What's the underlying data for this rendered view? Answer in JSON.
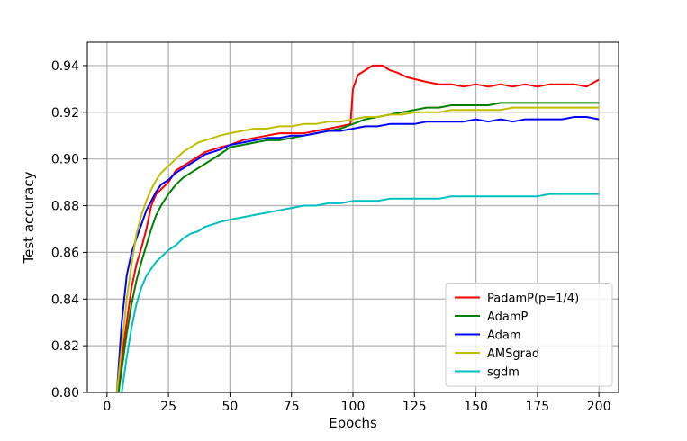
{
  "chart_data": {
    "type": "line",
    "xlabel": "Epochs",
    "ylabel": "Test accuracy",
    "xlim": [
      -8,
      208
    ],
    "ylim": [
      0.8,
      0.95
    ],
    "xticks": [
      0,
      25,
      50,
      75,
      100,
      125,
      150,
      175,
      200
    ],
    "xtick_labels": [
      "0",
      "25",
      "50",
      "75",
      "100",
      "125",
      "150",
      "175",
      "200"
    ],
    "yticks": [
      0.8,
      0.82,
      0.84,
      0.86,
      0.88,
      0.9,
      0.92,
      0.94
    ],
    "ytick_labels": [
      "0.80",
      "0.82",
      "0.84",
      "0.86",
      "0.88",
      "0.90",
      "0.92",
      "0.94"
    ],
    "grid": true,
    "legend_position": "lower-right",
    "series": [
      {
        "name": "PadamP(p=1/4)",
        "color": "#ff0000",
        "points": [
          [
            4,
            0.795
          ],
          [
            6,
            0.815
          ],
          [
            8,
            0.83
          ],
          [
            10,
            0.845
          ],
          [
            12,
            0.855
          ],
          [
            14,
            0.862
          ],
          [
            16,
            0.87
          ],
          [
            18,
            0.88
          ],
          [
            20,
            0.885
          ],
          [
            22,
            0.887
          ],
          [
            25,
            0.89
          ],
          [
            28,
            0.895
          ],
          [
            31,
            0.897
          ],
          [
            34,
            0.899
          ],
          [
            37,
            0.901
          ],
          [
            40,
            0.903
          ],
          [
            43,
            0.904
          ],
          [
            46,
            0.905
          ],
          [
            50,
            0.906
          ],
          [
            55,
            0.908
          ],
          [
            60,
            0.909
          ],
          [
            65,
            0.91
          ],
          [
            70,
            0.911
          ],
          [
            75,
            0.911
          ],
          [
            80,
            0.911
          ],
          [
            85,
            0.912
          ],
          [
            90,
            0.913
          ],
          [
            95,
            0.914
          ],
          [
            99,
            0.915
          ],
          [
            100,
            0.93
          ],
          [
            102,
            0.936
          ],
          [
            105,
            0.938
          ],
          [
            108,
            0.94
          ],
          [
            112,
            0.94
          ],
          [
            115,
            0.938
          ],
          [
            118,
            0.937
          ],
          [
            122,
            0.935
          ],
          [
            126,
            0.934
          ],
          [
            130,
            0.933
          ],
          [
            135,
            0.932
          ],
          [
            140,
            0.932
          ],
          [
            145,
            0.931
          ],
          [
            150,
            0.932
          ],
          [
            155,
            0.931
          ],
          [
            160,
            0.932
          ],
          [
            165,
            0.931
          ],
          [
            170,
            0.932
          ],
          [
            175,
            0.931
          ],
          [
            180,
            0.932
          ],
          [
            185,
            0.932
          ],
          [
            190,
            0.932
          ],
          [
            195,
            0.931
          ],
          [
            200,
            0.934
          ]
        ]
      },
      {
        "name": "AdamP",
        "color": "#008000",
        "points": [
          [
            4,
            0.795
          ],
          [
            6,
            0.81
          ],
          [
            8,
            0.825
          ],
          [
            10,
            0.838
          ],
          [
            12,
            0.848
          ],
          [
            14,
            0.856
          ],
          [
            16,
            0.863
          ],
          [
            18,
            0.87
          ],
          [
            20,
            0.876
          ],
          [
            22,
            0.88
          ],
          [
            25,
            0.885
          ],
          [
            28,
            0.889
          ],
          [
            31,
            0.892
          ],
          [
            34,
            0.894
          ],
          [
            37,
            0.896
          ],
          [
            40,
            0.898
          ],
          [
            43,
            0.9
          ],
          [
            46,
            0.902
          ],
          [
            50,
            0.905
          ],
          [
            55,
            0.906
          ],
          [
            60,
            0.907
          ],
          [
            65,
            0.908
          ],
          [
            70,
            0.908
          ],
          [
            75,
            0.909
          ],
          [
            80,
            0.91
          ],
          [
            85,
            0.911
          ],
          [
            90,
            0.912
          ],
          [
            95,
            0.913
          ],
          [
            100,
            0.915
          ],
          [
            105,
            0.917
          ],
          [
            110,
            0.918
          ],
          [
            115,
            0.919
          ],
          [
            120,
            0.92
          ],
          [
            125,
            0.921
          ],
          [
            130,
            0.922
          ],
          [
            135,
            0.922
          ],
          [
            140,
            0.923
          ],
          [
            145,
            0.923
          ],
          [
            150,
            0.923
          ],
          [
            155,
            0.923
          ],
          [
            160,
            0.924
          ],
          [
            165,
            0.924
          ],
          [
            170,
            0.924
          ],
          [
            175,
            0.924
          ],
          [
            180,
            0.924
          ],
          [
            185,
            0.924
          ],
          [
            190,
            0.924
          ],
          [
            195,
            0.924
          ],
          [
            200,
            0.924
          ]
        ]
      },
      {
        "name": "Adam",
        "color": "#0000ff",
        "points": [
          [
            4,
            0.8
          ],
          [
            6,
            0.83
          ],
          [
            8,
            0.85
          ],
          [
            10,
            0.86
          ],
          [
            12,
            0.866
          ],
          [
            14,
            0.872
          ],
          [
            16,
            0.878
          ],
          [
            18,
            0.882
          ],
          [
            20,
            0.886
          ],
          [
            22,
            0.889
          ],
          [
            25,
            0.891
          ],
          [
            28,
            0.894
          ],
          [
            31,
            0.896
          ],
          [
            34,
            0.898
          ],
          [
            37,
            0.9
          ],
          [
            40,
            0.902
          ],
          [
            43,
            0.903
          ],
          [
            46,
            0.904
          ],
          [
            50,
            0.906
          ],
          [
            55,
            0.907
          ],
          [
            60,
            0.908
          ],
          [
            65,
            0.909
          ],
          [
            70,
            0.909
          ],
          [
            75,
            0.91
          ],
          [
            80,
            0.91
          ],
          [
            85,
            0.911
          ],
          [
            90,
            0.912
          ],
          [
            95,
            0.912
          ],
          [
            100,
            0.913
          ],
          [
            105,
            0.914
          ],
          [
            110,
            0.914
          ],
          [
            115,
            0.915
          ],
          [
            120,
            0.915
          ],
          [
            125,
            0.915
          ],
          [
            130,
            0.916
          ],
          [
            135,
            0.916
          ],
          [
            140,
            0.916
          ],
          [
            145,
            0.916
          ],
          [
            150,
            0.917
          ],
          [
            155,
            0.916
          ],
          [
            160,
            0.917
          ],
          [
            165,
            0.916
          ],
          [
            170,
            0.917
          ],
          [
            175,
            0.917
          ],
          [
            180,
            0.917
          ],
          [
            185,
            0.917
          ],
          [
            190,
            0.918
          ],
          [
            195,
            0.918
          ],
          [
            200,
            0.917
          ]
        ]
      },
      {
        "name": "AMSgrad",
        "color": "#bfbf00",
        "points": [
          [
            4,
            0.8
          ],
          [
            6,
            0.82
          ],
          [
            8,
            0.84
          ],
          [
            10,
            0.855
          ],
          [
            12,
            0.868
          ],
          [
            14,
            0.876
          ],
          [
            16,
            0.882
          ],
          [
            18,
            0.887
          ],
          [
            20,
            0.891
          ],
          [
            22,
            0.894
          ],
          [
            25,
            0.897
          ],
          [
            28,
            0.9
          ],
          [
            31,
            0.903
          ],
          [
            34,
            0.905
          ],
          [
            37,
            0.907
          ],
          [
            40,
            0.908
          ],
          [
            43,
            0.909
          ],
          [
            46,
            0.91
          ],
          [
            50,
            0.911
          ],
          [
            55,
            0.912
          ],
          [
            60,
            0.913
          ],
          [
            65,
            0.913
          ],
          [
            70,
            0.914
          ],
          [
            75,
            0.914
          ],
          [
            80,
            0.915
          ],
          [
            85,
            0.915
          ],
          [
            90,
            0.916
          ],
          [
            95,
            0.916
          ],
          [
            100,
            0.917
          ],
          [
            105,
            0.918
          ],
          [
            110,
            0.918
          ],
          [
            115,
            0.919
          ],
          [
            120,
            0.919
          ],
          [
            125,
            0.92
          ],
          [
            130,
            0.92
          ],
          [
            135,
            0.92
          ],
          [
            140,
            0.921
          ],
          [
            145,
            0.921
          ],
          [
            150,
            0.921
          ],
          [
            155,
            0.921
          ],
          [
            160,
            0.921
          ],
          [
            165,
            0.922
          ],
          [
            170,
            0.922
          ],
          [
            175,
            0.922
          ],
          [
            180,
            0.922
          ],
          [
            185,
            0.922
          ],
          [
            190,
            0.922
          ],
          [
            195,
            0.922
          ],
          [
            200,
            0.922
          ]
        ]
      },
      {
        "name": "sgdm",
        "color": "#00bfbf",
        "points": [
          [
            6,
            0.8
          ],
          [
            8,
            0.815
          ],
          [
            10,
            0.828
          ],
          [
            12,
            0.838
          ],
          [
            14,
            0.845
          ],
          [
            16,
            0.85
          ],
          [
            18,
            0.853
          ],
          [
            20,
            0.856
          ],
          [
            22,
            0.858
          ],
          [
            25,
            0.861
          ],
          [
            28,
            0.863
          ],
          [
            31,
            0.866
          ],
          [
            34,
            0.868
          ],
          [
            37,
            0.869
          ],
          [
            40,
            0.871
          ],
          [
            43,
            0.872
          ],
          [
            46,
            0.873
          ],
          [
            50,
            0.874
          ],
          [
            55,
            0.875
          ],
          [
            60,
            0.876
          ],
          [
            65,
            0.877
          ],
          [
            70,
            0.878
          ],
          [
            75,
            0.879
          ],
          [
            80,
            0.88
          ],
          [
            85,
            0.88
          ],
          [
            90,
            0.881
          ],
          [
            95,
            0.881
          ],
          [
            100,
            0.882
          ],
          [
            105,
            0.882
          ],
          [
            110,
            0.882
          ],
          [
            115,
            0.883
          ],
          [
            120,
            0.883
          ],
          [
            125,
            0.883
          ],
          [
            130,
            0.883
          ],
          [
            135,
            0.883
          ],
          [
            140,
            0.884
          ],
          [
            145,
            0.884
          ],
          [
            150,
            0.884
          ],
          [
            155,
            0.884
          ],
          [
            160,
            0.884
          ],
          [
            165,
            0.884
          ],
          [
            170,
            0.884
          ],
          [
            175,
            0.884
          ],
          [
            180,
            0.885
          ],
          [
            185,
            0.885
          ],
          [
            190,
            0.885
          ],
          [
            195,
            0.885
          ],
          [
            200,
            0.885
          ]
        ]
      }
    ]
  }
}
